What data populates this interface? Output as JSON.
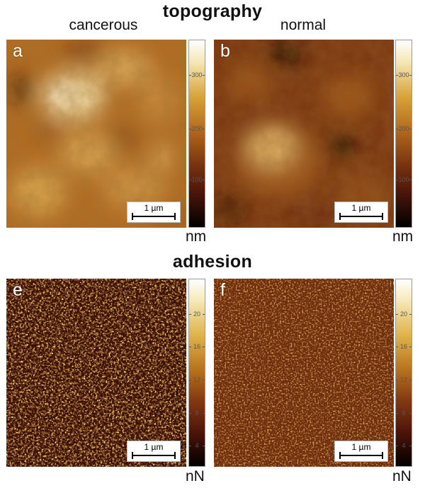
{
  "topography": {
    "heading": "topography",
    "col_left": "cancerous",
    "col_right": "normal",
    "unit": "nm",
    "ticks": [
      "300",
      "200",
      "100"
    ],
    "panels": [
      {
        "label": "a",
        "scale": "1 µm"
      },
      {
        "label": "b",
        "scale": "1 µm"
      }
    ]
  },
  "adhesion": {
    "heading": "adhesion",
    "unit": "nN",
    "ticks": [
      "20",
      "16",
      "12",
      "8",
      "4"
    ],
    "panels": [
      {
        "label": "e",
        "scale": "1 µm"
      },
      {
        "label": "f",
        "scale": "1 µm"
      }
    ]
  },
  "colors": {
    "topo_colormap": [
      "#000000",
      "#4a150a",
      "#7c3510",
      "#b46a1c",
      "#d9a43a",
      "#f4e6b4",
      "#ffffff"
    ],
    "adhesion_colormap": [
      "#000000",
      "#4d1409",
      "#843812",
      "#b9741e",
      "#dfb34a",
      "#f7ecc0",
      "#ffffff"
    ]
  }
}
